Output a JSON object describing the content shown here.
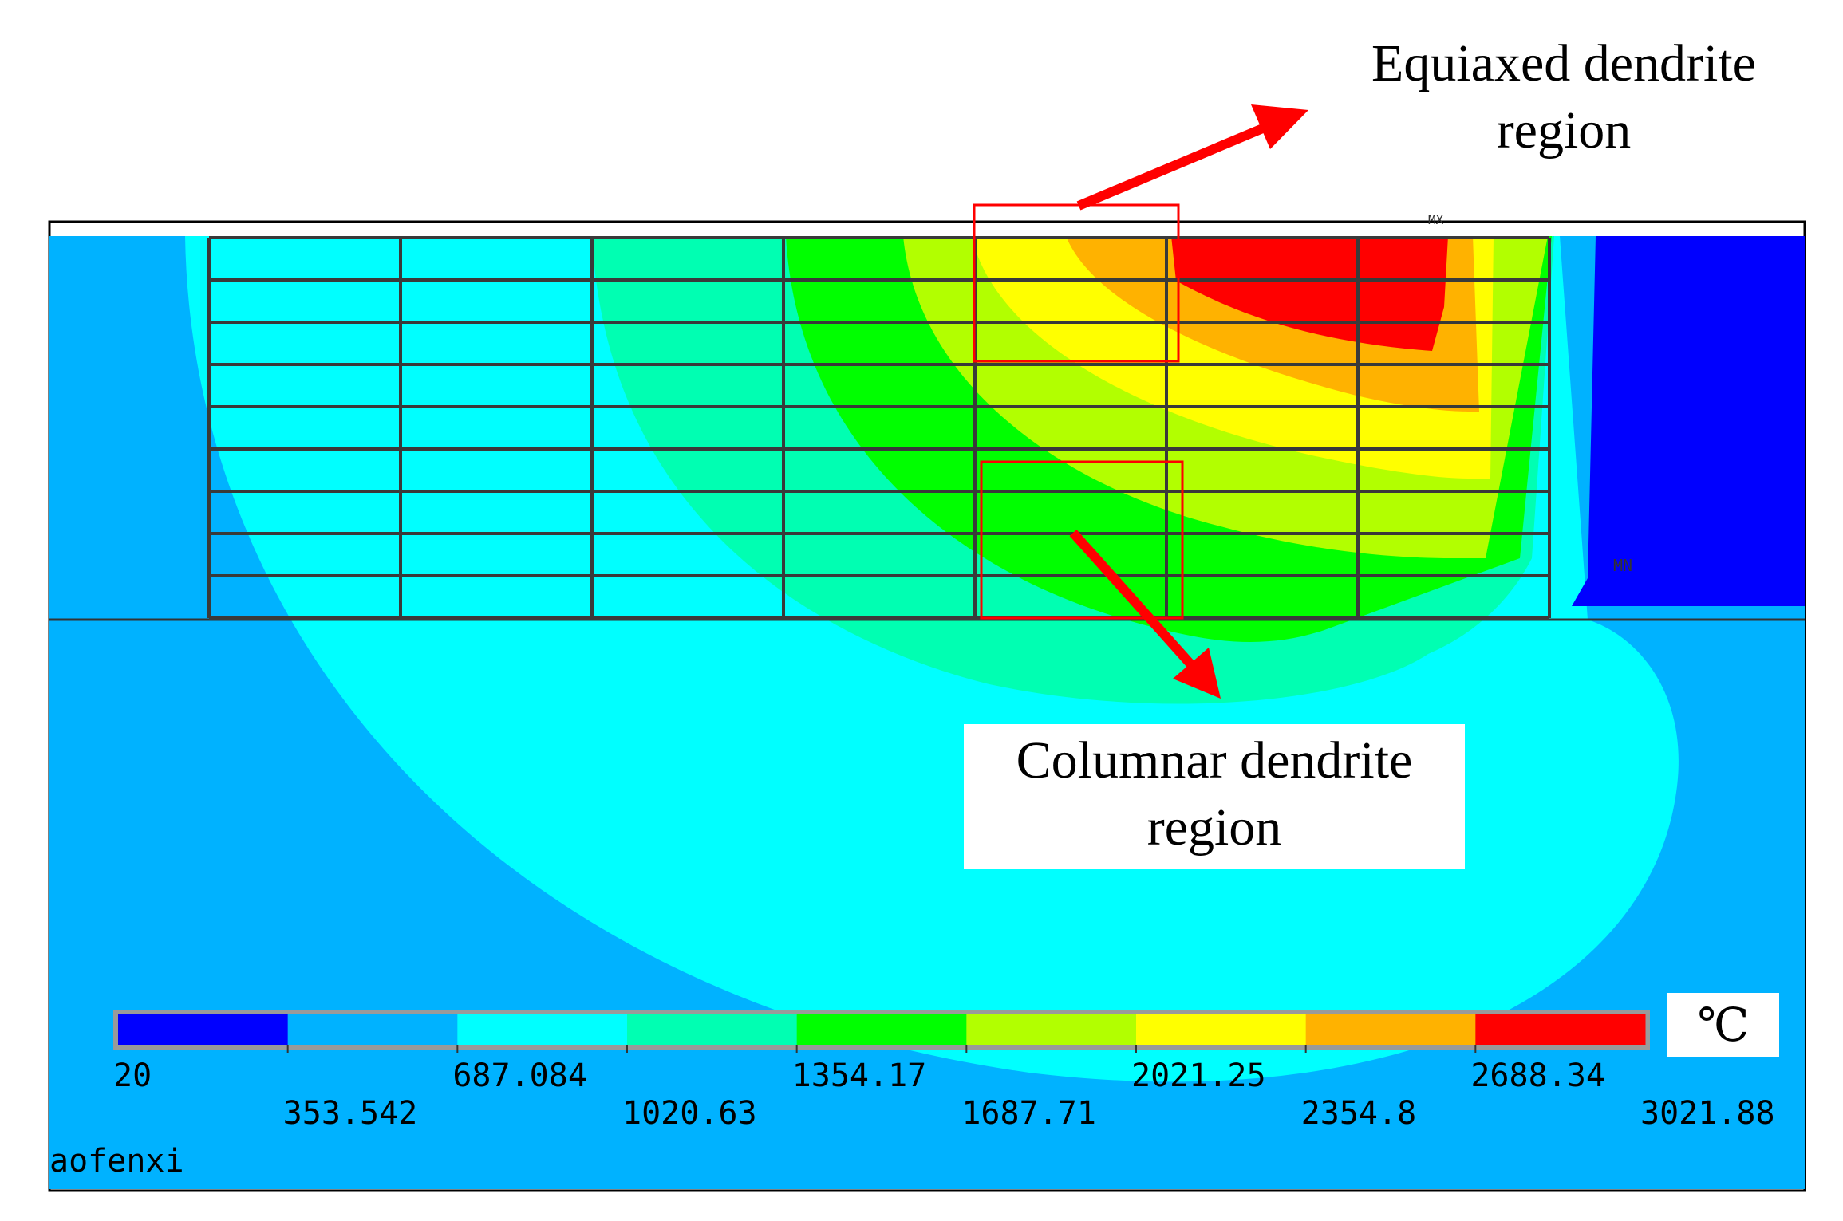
{
  "chart_data": {
    "type": "heatmap",
    "title": "",
    "unit": "℃",
    "colorbar": {
      "ticks": [
        20,
        353.542,
        687.084,
        1020.63,
        1354.17,
        1687.71,
        2021.25,
        2354.8,
        2688.34,
        3021.88
      ],
      "tick_labels": [
        "20",
        "353.542",
        "687.084",
        "1020.63",
        "1354.17",
        "1687.71",
        "2021.25",
        "2354.8",
        "2688.34",
        "3021.88"
      ],
      "colors": [
        "#0000ff",
        "#00b2ff",
        "#00ffff",
        "#00ffb2",
        "#00ff00",
        "#b2ff00",
        "#ffff00",
        "#ffb200",
        "#ff0000"
      ]
    },
    "annotations": [
      {
        "id": "equiaxed",
        "lines": [
          "Equiaxed dendrite",
          "region"
        ]
      },
      {
        "id": "columnar",
        "lines": [
          "Columnar dendrite",
          "region"
        ]
      }
    ],
    "watermark": "aofenxi"
  }
}
